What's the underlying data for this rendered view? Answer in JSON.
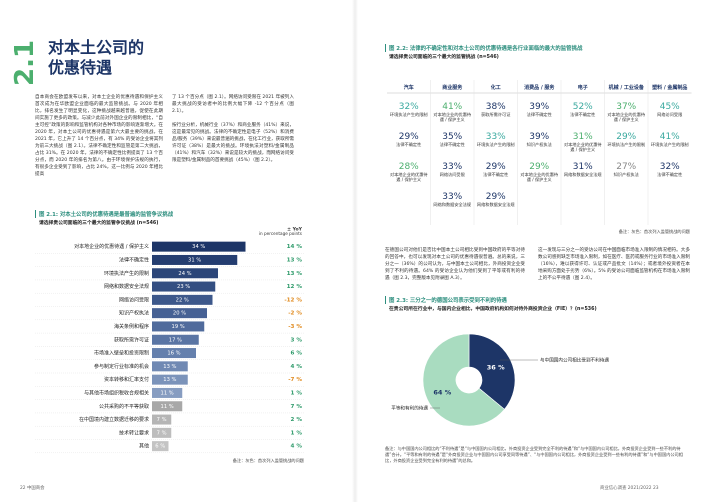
{
  "left_page": {
    "section_number": "2.1",
    "title_lines": [
      "对本土公司的",
      "优惠待遇"
    ],
    "col1": "自本商会在欧盟发布以来，对本土企业的优惠待遇和保护主义首次成为在华欧盟企业面临的最大监管挑战。与 2020 年相比，排名发生了明显变化，这种挑战越来越普遍，促使在此期间实施了更多的政策。与减少此前对外国企业的限制相比，“自主可控”政策的影响和监管机构对各种市场的影响逐渐增大。在 2020 年，对本土公司的优惠待遇是第六大最主要的挑战，在 2021 年，它上升了 14 个百分点，有 34% 的受访企业将其列为前三大挑战（图 2.1）。法律不确定性和监管是第二大挑战，占比 31%。在 2020 年，法律的不确定性比例提高了 13 个百分点，而 2020 年的排名为第八。由于环境保护法规的执行，有很多企业受到了影响，占比 24%，这一比例与 2020 年相比提高",
    "col2_paragraphs": [
      "了 13 个百分点（图 2.1）。网络访问受限在 2021 年被列入最大挑战的受访者中的比例大幅下降 -12 个百分点（图 2.1）。",
      "按行业分析，机械行业（37%）和商业服务（41%）来说，这是最常见的挑战。法律的不确定性是电子（52%）和消费品/服务（39%）来说最普遍的挑战，在化工行业，获取所需许可证（38%）是最大的挑战。环境执法对塑料/金属制品（41%）和汽车（32%）来说是较大的挑战，而网络访问受限是塑料/金属制品的首要挑战（45%）（图 2.2）。"
    ],
    "figure": {
      "title": "图 2.1: 对本土公司的优惠待遇是最普遍的监管争议挑战",
      "subtitle": "请选择贵公司面临的三个最大的监管争议挑战 (n=546)",
      "chart": {
        "type": "bar",
        "change_header": [
          "± YoY",
          "in percentage points"
        ],
        "categories": [
          "对本地企业的优惠待遇 / 保护主义",
          "法律不确定性",
          "环境执法产生的限制",
          "网络和数据安全法规",
          "网络访问受限",
          "知识产权执法",
          "海关条例和程序",
          "获取所需许可证",
          "市场准入壁垒和投资限制",
          "参与制定行业标准的机会",
          "资本转移和汇率支付",
          "与其他市场组织税收合规相关",
          "公共采购的不平等获取",
          "在中国境内建立数据迁移的要求",
          "技术转让要求",
          "其他"
        ],
        "values": [
          34,
          31,
          24,
          23,
          22,
          20,
          19,
          17,
          16,
          13,
          13,
          11,
          11,
          7,
          7,
          6
        ],
        "value_labels": [
          "34 %",
          "31 %",
          "24 %",
          "23 %",
          "22 %",
          "20 %",
          "19 %",
          "17 %",
          "16 %",
          "13 %",
          "13 %",
          "11 %",
          "11 %",
          "7 %",
          "7 %",
          "6 %"
        ],
        "colors": [
          "#1d3567",
          "#243d70",
          "#2c4679",
          "#344f82",
          "#3d588b",
          "#466194",
          "#506b9c",
          "#5a75a4",
          "#6580ad",
          "#7089b3",
          "#7b93ba",
          "#879dc1",
          "#a8a8a8",
          "#b5b5b5",
          "#bdbdbd",
          "#c4c4c4"
        ],
        "changes": [
          14,
          13,
          13,
          12,
          -12,
          -2,
          -3,
          3,
          6,
          4,
          -7,
          1,
          7,
          2,
          1,
          4
        ],
        "change_labels": [
          "14 %",
          "13 %",
          "13 %",
          "12 %",
          "-12 %",
          "-2 %",
          "-3 %",
          "3 %",
          "6 %",
          "4 %",
          "-7 %",
          "1 %",
          "7 %",
          "2 %",
          "1 %",
          "4 %"
        ],
        "note": "备注：灰色：首次列入监管挑战的问题"
      }
    },
    "footer": "22   中国商会"
  },
  "right_page": {
    "figure_2_2": {
      "title": "图 2.2: 法律的不确定性和对本土公司的优惠待遇是各行业面临的最大的监管挑战",
      "subtitle": "请选择贵公司面临的三个最大的监管挑战 (n=546)",
      "columns": [
        {
          "header": "汽车",
          "cells": [
            {
              "value": "32%",
              "label": "环境执法产生的限制",
              "color": "#3aa99f"
            },
            {
              "value": "29%",
              "label": "法律不确定性",
              "color": "#1d3567"
            },
            {
              "value": "28%",
              "label": "对本地企业的优惠待遇 / 保护主义",
              "color": "#4caf6e"
            }
          ]
        },
        {
          "header": "商业服务",
          "cells": [
            {
              "value": "41%",
              "label": "对本地企业的优惠待遇 / 保护主义",
              "color": "#4caf6e"
            },
            {
              "value": "35%",
              "label": "法律不确定性",
              "color": "#1d3567"
            },
            {
              "value": "33%",
              "label": "网络访问受限",
              "color": "#1d3567"
            },
            {
              "value": "33%",
              "label": "网络和数据安全法规",
              "color": "#1d3567"
            }
          ]
        },
        {
          "header": "化工",
          "cells": [
            {
              "value": "38%",
              "label": "获取所需许可证",
              "color": "#1d3567"
            },
            {
              "value": "33%",
              "label": "环境执法产生的限制",
              "color": "#3aa99f"
            },
            {
              "value": "29%",
              "label": "法律不确定性",
              "color": "#1d3567"
            },
            {
              "value": "29%",
              "label": "网络和数据安全法规",
              "color": "#1d3567"
            }
          ]
        },
        {
          "header": "消费品 / 服务",
          "cells": [
            {
              "value": "39%",
              "label": "法律不确定性",
              "color": "#1d3567"
            },
            {
              "value": "39%",
              "label": "知识产权执法",
              "color": "#1d3567"
            },
            {
              "value": "29%",
              "label": "对本地企业的优惠待遇 / 保护主义",
              "color": "#4caf6e"
            }
          ]
        },
        {
          "header": "电子",
          "cells": [
            {
              "value": "52%",
              "label": "法律不确定性",
              "color": "#3aa99f"
            },
            {
              "value": "31%",
              "label": "对本地企业的优惠待遇 / 保护主义",
              "color": "#4caf6e"
            },
            {
              "value": "31%",
              "label": "网络和数据安全法规",
              "color": "#1d3567"
            }
          ]
        },
        {
          "header": "机械 / 工业设备",
          "cells": [
            {
              "value": "37%",
              "label": "对本地企业的优惠待遇 / 保护主义",
              "color": "#4caf6e"
            },
            {
              "value": "29%",
              "label": "环境执法产生的限制",
              "color": "#3aa99f"
            },
            {
              "value": "27%",
              "label": "知识产权执法",
              "color": "#888888"
            }
          ]
        },
        {
          "header": "塑料 / 金属制品",
          "cells": [
            {
              "value": "45%",
              "label": "网络访问受限",
              "color": "#3aa99f"
            },
            {
              "value": "41%",
              "label": "环境执法产生的限制",
              "color": "#3aa99f"
            },
            {
              "value": "32%",
              "label": "法律不确定性",
              "color": "#1d3567"
            }
          ]
        }
      ],
      "note": "备注：灰色：首次列入监管挑战的问题"
    },
    "col1": "在德国公司对他们是否比中国本土公司相比受到中国政府的平等对待的回答中，也可以发现对本土公司的优惠待遇很普遍。总的来说，三分之一（36%）的公司认为，与中国本土公司相比，外商投资企业受到了不利的待遇。64% 的受访企业认为他们受到了平等或有利的待遇（图 2.3，完整版本见附录图 A.3）。",
    "col2": "这一发现与三分之一的受访公司在中国面临市场准入限制的情况相符。大多数公司感到缺乏市场准入限制，如在医疗、医药或服务行业的市场准入限制（16%），难以获得许可、认证或产品批文（14%）；或者境外投资者在本地采购方面处于劣势（6%）。5% 的受访公司面临监管机构在市场准入限制上的不公平待遇（图 2.4）。",
    "figure_2_3": {
      "title": "图 2.3: 三分之一的德国公司表示受到不利的待遇",
      "subtitle": "在贵公司所在行业中，与国内企业相比，中国政府机构如何对待外商投资企业（FIE）？(n=536)",
      "chart": {
        "type": "pie",
        "categories": [
          "与中国国内公司相比受到不利待遇",
          "平等和有利的待遇"
        ],
        "values": [
          36,
          64
        ],
        "value_labels": [
          "36 %",
          "64 %"
        ],
        "colors": [
          "#1d3567",
          "#a9dcc0"
        ]
      },
      "note": "备注：与中国国内公司相比的“不利待遇”是“与中国国内公司相比，外商投资企业受到完全不利的待遇”和“与中国国内公司相比，外商投资企业受到一些不利的待遇”合计。“平等和有利的待遇”是“外商投资企业与中国国内公司享受同等待遇”、“与中国国内公司相比，外商投资企业受到一些有利的待遇”和“与中国国内公司相比，外商投资企业受到完全有利的待遇”的总和。"
    },
    "footer": "商业信心调查 2021/2022   23"
  }
}
